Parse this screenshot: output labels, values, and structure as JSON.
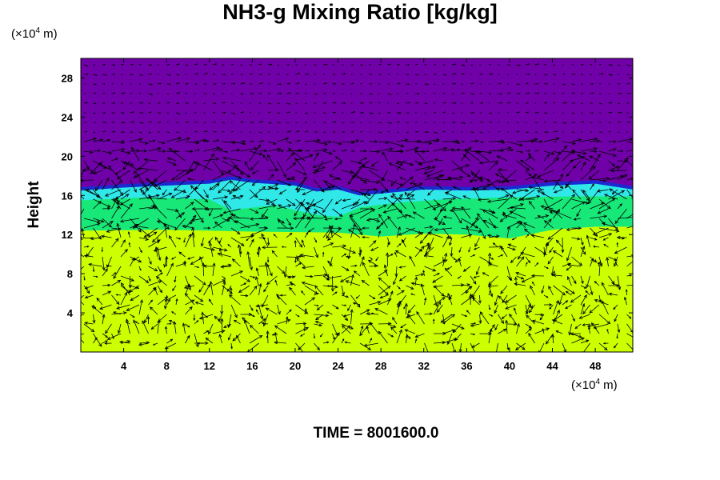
{
  "chart_data": {
    "type": "heatmap",
    "title": "NH3-g Mixing Ratio [kg/kg]",
    "ylabel": "Height",
    "xlabel": "",
    "x_unit": "(×10",
    "x_unit_exp": "4",
    "x_unit_tail": " m)",
    "y_unit": "(×10",
    "y_unit_exp": "4",
    "y_unit_tail": " m)",
    "xlim": [
      0,
      51.5
    ],
    "ylim": [
      0,
      30
    ],
    "x_ticks": [
      4,
      8,
      12,
      16,
      20,
      24,
      28,
      32,
      36,
      40,
      44,
      48
    ],
    "y_ticks": [
      4,
      8,
      12,
      16,
      20,
      24,
      28
    ],
    "x_tick_labels": [
      "4",
      "8",
      "12",
      "16",
      "20",
      "24",
      "28",
      "32",
      "36",
      "40",
      "44",
      "48"
    ],
    "y_tick_labels": [
      "4",
      "8",
      "12",
      "16",
      "20",
      "24",
      "28"
    ],
    "colors": {
      "top_layer": "#7000a8",
      "interface": "#1a2ad0",
      "upper_band": "#30e8e8",
      "mid_band": "#18e878",
      "lower_band": "#ccff00",
      "vector": "#000000"
    },
    "layers": {
      "interface_profile": [
        [
          0,
          16.5
        ],
        [
          4,
          16.8
        ],
        [
          8,
          17.0
        ],
        [
          12,
          17.2
        ],
        [
          14,
          17.6
        ],
        [
          16,
          17.3
        ],
        [
          20,
          17.0
        ],
        [
          22,
          16.4
        ],
        [
          24,
          16.6
        ],
        [
          26,
          16.0
        ],
        [
          28,
          16.2
        ],
        [
          32,
          16.6
        ],
        [
          36,
          16.5
        ],
        [
          40,
          16.6
        ],
        [
          44,
          17.0
        ],
        [
          48,
          17.2
        ],
        [
          51.5,
          16.6
        ]
      ],
      "green_top": [
        [
          0,
          15.5
        ],
        [
          6,
          15.8
        ],
        [
          12,
          15.6
        ],
        [
          14,
          14.5
        ],
        [
          18,
          15.0
        ],
        [
          22,
          14.0
        ],
        [
          24,
          13.8
        ],
        [
          26,
          14.8
        ],
        [
          30,
          15.3
        ],
        [
          34,
          15.6
        ],
        [
          40,
          15.8
        ],
        [
          46,
          15.9
        ],
        [
          51.5,
          15.9
        ]
      ],
      "yellow_top": [
        [
          0,
          12.4
        ],
        [
          8,
          12.5
        ],
        [
          16,
          12.3
        ],
        [
          24,
          12.2
        ],
        [
          28,
          11.8
        ],
        [
          32,
          12.1
        ],
        [
          36,
          12.0
        ],
        [
          40,
          11.6
        ],
        [
          44,
          12.5
        ],
        [
          48,
          12.8
        ],
        [
          51.5,
          12.8
        ]
      ]
    }
  },
  "time_label": "TIME = 8001600.0"
}
